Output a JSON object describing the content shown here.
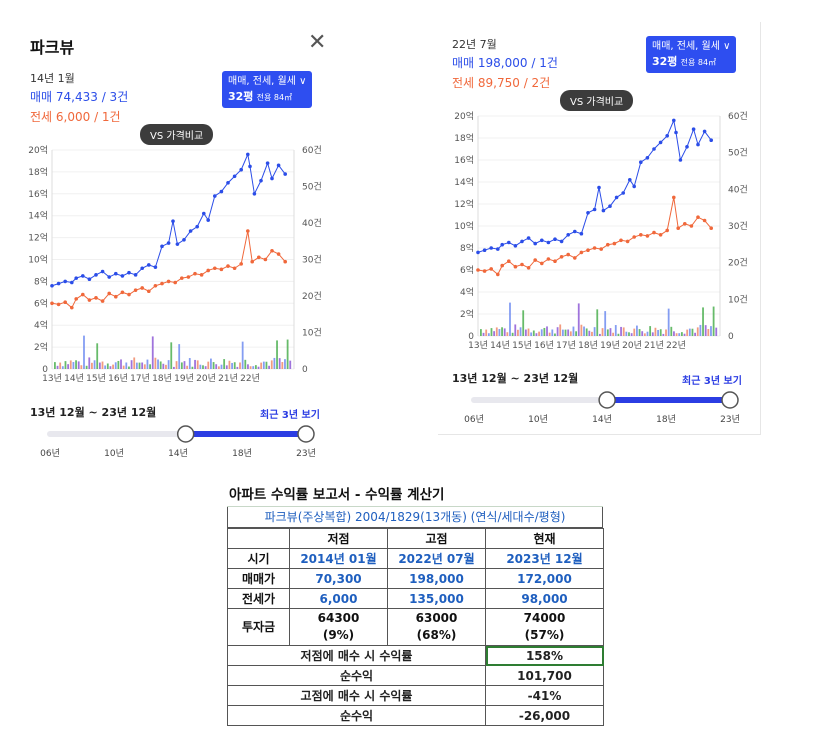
{
  "panel_a": {
    "title": "파크뷰",
    "date": "14년 1월",
    "sale_text": "매매 74,433 / 3건",
    "rent_text": "전세 6,000 / 1건",
    "filter_line1": "매매, 전세, 월세 ∨",
    "filter_pyeong": "32평",
    "filter_area": "전용 84㎡",
    "compare_button": "VS 가격비교",
    "range_label": "13년 12월 ~ 23년 12월",
    "recent_link": "최근 3년 보기",
    "slider_ticks": [
      "06년",
      "10년",
      "14년",
      "18년",
      "23년"
    ]
  },
  "panel_b": {
    "date": "22년 7월",
    "sale_text": "매매 198,000 / 1건",
    "rent_text": "전세 89,750 / 2건",
    "filter_line1": "매매, 전세, 월세 ∨",
    "filter_pyeong": "32평",
    "filter_area": "전용 84㎡",
    "compare_button": "VS 가격비교",
    "range_label": "13년 12월 ~ 23년 12월",
    "recent_link": "최근 3년 보기",
    "slider_ticks": [
      "06년",
      "10년",
      "14년",
      "18년",
      "23년"
    ]
  },
  "colors": {
    "sale": "#2b4de8",
    "rent": "#f0683b",
    "accent": "#2e4ef0",
    "bar_green": "#4caf50",
    "bar_purple": "#8e5bd6"
  },
  "chart_data": [
    {
      "type": "line",
      "x_ticks": [
        "13년",
        "14년",
        "15년",
        "16년",
        "17년",
        "18년",
        "19년",
        "20년",
        "21년",
        "22년"
      ],
      "left_ticks": [
        "0",
        "2억",
        "4억",
        "6억",
        "8억",
        "10억",
        "12억",
        "14억",
        "16억",
        "18억",
        "20억"
      ],
      "right_ticks": [
        "0",
        "10건",
        "20건",
        "30건",
        "40건",
        "50건",
        "60건"
      ],
      "ylim": [
        0,
        20
      ],
      "y2lim": [
        0,
        60
      ],
      "x_range": [
        2013.0,
        2024.0
      ],
      "series": [
        {
          "key": "sale",
          "points": [
            [
              2013.0,
              7.6
            ],
            [
              2013.3,
              7.8
            ],
            [
              2013.6,
              8.0
            ],
            [
              2013.9,
              7.9
            ],
            [
              2014.1,
              8.3
            ],
            [
              2014.4,
              8.5
            ],
            [
              2014.7,
              8.2
            ],
            [
              2015.0,
              8.6
            ],
            [
              2015.3,
              8.9
            ],
            [
              2015.6,
              8.4
            ],
            [
              2015.9,
              8.7
            ],
            [
              2016.2,
              8.5
            ],
            [
              2016.5,
              8.8
            ],
            [
              2016.8,
              8.6
            ],
            [
              2017.1,
              9.2
            ],
            [
              2017.4,
              9.5
            ],
            [
              2017.7,
              9.3
            ],
            [
              2018.0,
              11.2
            ],
            [
              2018.3,
              11.5
            ],
            [
              2018.5,
              13.5
            ],
            [
              2018.7,
              11.4
            ],
            [
              2019.0,
              11.8
            ],
            [
              2019.3,
              12.6
            ],
            [
              2019.6,
              13.0
            ],
            [
              2019.9,
              14.2
            ],
            [
              2020.1,
              13.6
            ],
            [
              2020.4,
              15.8
            ],
            [
              2020.7,
              16.2
            ],
            [
              2021.0,
              17.0
            ],
            [
              2021.3,
              17.6
            ],
            [
              2021.6,
              18.2
            ],
            [
              2021.9,
              19.6
            ],
            [
              2022.0,
              18.5
            ],
            [
              2022.2,
              16.0
            ],
            [
              2022.5,
              17.2
            ],
            [
              2022.8,
              18.8
            ],
            [
              2023.0,
              17.4
            ],
            [
              2023.3,
              18.6
            ],
            [
              2023.6,
              17.8
            ]
          ]
        },
        {
          "key": "rent",
          "points": [
            [
              2013.0,
              6.0
            ],
            [
              2013.3,
              5.9
            ],
            [
              2013.6,
              6.1
            ],
            [
              2013.9,
              5.6
            ],
            [
              2014.1,
              6.4
            ],
            [
              2014.4,
              6.8
            ],
            [
              2014.7,
              6.3
            ],
            [
              2015.0,
              6.5
            ],
            [
              2015.3,
              6.2
            ],
            [
              2015.6,
              6.9
            ],
            [
              2015.9,
              6.6
            ],
            [
              2016.2,
              7.0
            ],
            [
              2016.5,
              6.8
            ],
            [
              2016.8,
              7.2
            ],
            [
              2017.1,
              7.4
            ],
            [
              2017.4,
              7.1
            ],
            [
              2017.7,
              7.6
            ],
            [
              2018.0,
              7.8
            ],
            [
              2018.3,
              8.0
            ],
            [
              2018.6,
              7.9
            ],
            [
              2018.9,
              8.3
            ],
            [
              2019.2,
              8.4
            ],
            [
              2019.5,
              8.7
            ],
            [
              2019.8,
              8.6
            ],
            [
              2020.1,
              9.0
            ],
            [
              2020.4,
              9.2
            ],
            [
              2020.7,
              9.1
            ],
            [
              2021.0,
              9.4
            ],
            [
              2021.3,
              9.2
            ],
            [
              2021.6,
              9.6
            ],
            [
              2021.9,
              12.6
            ],
            [
              2022.1,
              9.8
            ],
            [
              2022.4,
              10.2
            ],
            [
              2022.7,
              10.0
            ],
            [
              2023.0,
              10.8
            ],
            [
              2023.3,
              10.5
            ],
            [
              2023.6,
              9.8
            ]
          ]
        }
      ]
    },
    {
      "type": "line",
      "x_ticks": [
        "13년",
        "14년",
        "15년",
        "16년",
        "17년",
        "18년",
        "19년",
        "20년",
        "21년",
        "22년"
      ],
      "left_ticks": [
        "0",
        "2억",
        "4억",
        "6억",
        "8억",
        "10억",
        "12억",
        "14억",
        "16억",
        "18억",
        "20억"
      ],
      "right_ticks": [
        "0",
        "10건",
        "20건",
        "30건",
        "40건",
        "50건",
        "60건"
      ],
      "ylim": [
        0,
        20
      ],
      "y2lim": [
        0,
        60
      ],
      "x_range": [
        2013.0,
        2024.0
      ],
      "series": [
        {
          "key": "sale",
          "points": [
            [
              2013.0,
              7.6
            ],
            [
              2013.3,
              7.8
            ],
            [
              2013.6,
              8.0
            ],
            [
              2013.9,
              7.9
            ],
            [
              2014.1,
              8.3
            ],
            [
              2014.4,
              8.5
            ],
            [
              2014.7,
              8.2
            ],
            [
              2015.0,
              8.6
            ],
            [
              2015.3,
              8.9
            ],
            [
              2015.6,
              8.4
            ],
            [
              2015.9,
              8.7
            ],
            [
              2016.2,
              8.5
            ],
            [
              2016.5,
              8.8
            ],
            [
              2016.8,
              8.6
            ],
            [
              2017.1,
              9.2
            ],
            [
              2017.4,
              9.5
            ],
            [
              2017.7,
              9.3
            ],
            [
              2018.0,
              11.2
            ],
            [
              2018.3,
              11.5
            ],
            [
              2018.5,
              13.5
            ],
            [
              2018.7,
              11.4
            ],
            [
              2019.0,
              11.8
            ],
            [
              2019.3,
              12.6
            ],
            [
              2019.6,
              13.0
            ],
            [
              2019.9,
              14.2
            ],
            [
              2020.1,
              13.6
            ],
            [
              2020.4,
              15.8
            ],
            [
              2020.7,
              16.2
            ],
            [
              2021.0,
              17.0
            ],
            [
              2021.3,
              17.6
            ],
            [
              2021.6,
              18.2
            ],
            [
              2021.9,
              19.6
            ],
            [
              2022.0,
              18.5
            ],
            [
              2022.2,
              16.0
            ],
            [
              2022.5,
              17.2
            ],
            [
              2022.8,
              18.8
            ],
            [
              2023.0,
              17.4
            ],
            [
              2023.3,
              18.6
            ],
            [
              2023.6,
              17.8
            ]
          ]
        },
        {
          "key": "rent",
          "points": [
            [
              2013.0,
              6.0
            ],
            [
              2013.3,
              5.9
            ],
            [
              2013.6,
              6.1
            ],
            [
              2013.9,
              5.6
            ],
            [
              2014.1,
              6.4
            ],
            [
              2014.4,
              6.8
            ],
            [
              2014.7,
              6.3
            ],
            [
              2015.0,
              6.5
            ],
            [
              2015.3,
              6.2
            ],
            [
              2015.6,
              6.9
            ],
            [
              2015.9,
              6.6
            ],
            [
              2016.2,
              7.0
            ],
            [
              2016.5,
              6.8
            ],
            [
              2016.8,
              7.2
            ],
            [
              2017.1,
              7.4
            ],
            [
              2017.4,
              7.1
            ],
            [
              2017.7,
              7.6
            ],
            [
              2018.0,
              7.8
            ],
            [
              2018.3,
              8.0
            ],
            [
              2018.6,
              7.9
            ],
            [
              2018.9,
              8.3
            ],
            [
              2019.2,
              8.4
            ],
            [
              2019.5,
              8.7
            ],
            [
              2019.8,
              8.6
            ],
            [
              2020.1,
              9.0
            ],
            [
              2020.4,
              9.2
            ],
            [
              2020.7,
              9.1
            ],
            [
              2021.0,
              9.4
            ],
            [
              2021.3,
              9.2
            ],
            [
              2021.6,
              9.6
            ],
            [
              2021.9,
              12.6
            ],
            [
              2022.1,
              9.8
            ],
            [
              2022.4,
              10.2
            ],
            [
              2022.7,
              10.0
            ],
            [
              2023.0,
              10.8
            ],
            [
              2023.3,
              10.5
            ],
            [
              2023.6,
              9.8
            ]
          ]
        }
      ]
    }
  ],
  "sheet": {
    "caption": "아파트 수익률 보고서 - 수익률 계산기",
    "apartment": "파크뷰(주상복합) 2004/1829(13개동) (연식/세대수/평형)",
    "col_headers": [
      "저점",
      "고점",
      "현재"
    ],
    "rows": [
      {
        "label": "시기",
        "values": [
          "2014년 01월",
          "2022년 07월",
          "2023년 12월"
        ]
      },
      {
        "label": "매매가",
        "values": [
          "70,300",
          "198,000",
          "172,000"
        ]
      },
      {
        "label": "전세가",
        "values": [
          "6,000",
          "135,000",
          "98,000"
        ]
      }
    ],
    "invest": {
      "label": "투자금",
      "values": [
        [
          "64300",
          "(9%)"
        ],
        [
          "63000",
          "(68%)"
        ],
        [
          "74000",
          "(57%)"
        ]
      ]
    },
    "results": [
      {
        "label": "저점에 매수 시 수익률",
        "value": "158%"
      },
      {
        "label": "순수익",
        "value": "101,700"
      },
      {
        "label": "고점에 매수 시 수익률",
        "value": "-41%"
      },
      {
        "label": "순수익",
        "value": "-26,000"
      }
    ]
  }
}
